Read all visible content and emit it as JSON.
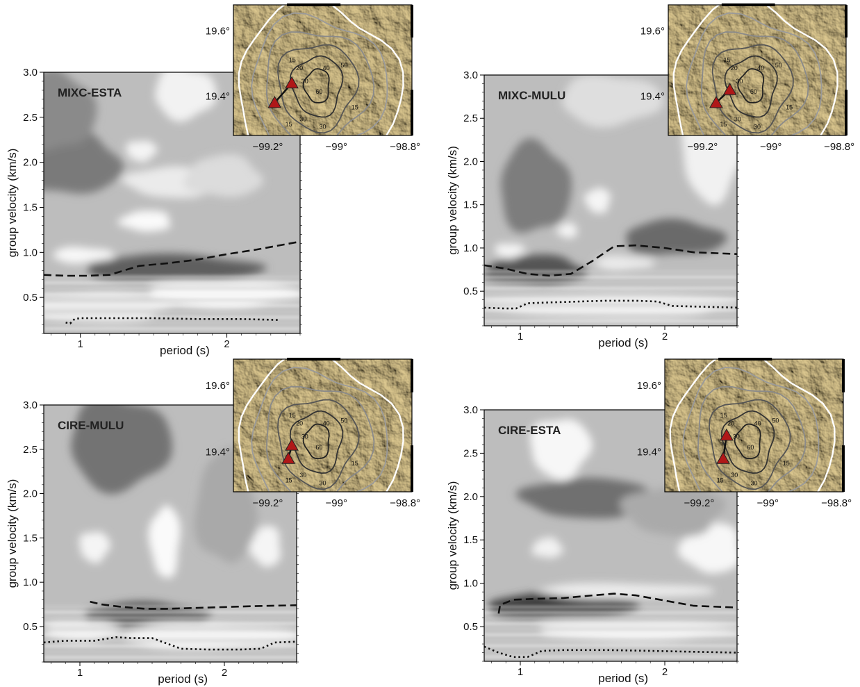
{
  "figure": {
    "map_lat_labels": [
      "19.6°",
      "19.4°"
    ],
    "map_lon_labels": [
      "−99.2°",
      "−99°",
      "−98.8°"
    ],
    "map_lat_values": [
      19.6,
      19.4
    ],
    "map_lon_values": [
      -99.2,
      -99.0,
      -98.8
    ],
    "contour_labels": [
      "15",
      "20",
      "30",
      "40",
      "50",
      "60",
      "15",
      "15",
      "30",
      "30"
    ],
    "colors": {
      "station": "#b01818",
      "dispersion_curve": "#111111",
      "map_terrain": "#c4a767",
      "contour_white": "#ffffff",
      "contour_grey": "#9a9a9a",
      "contour_dark": "#333333"
    }
  },
  "chart_data": [
    {
      "type": "heatmap",
      "title": "MIXC-ESTA",
      "xlabel": "period (s)",
      "ylabel": "group velocity (km/s)",
      "xlim": [
        0.75,
        2.5
      ],
      "ylim": [
        0.1,
        3.0
      ],
      "xticks": [
        "1",
        "2"
      ],
      "xtick_values": [
        1,
        2
      ],
      "yticks": [
        "0.5",
        "1.0",
        "1.5",
        "2.0",
        "2.5",
        "3.0"
      ],
      "ytick_values": [
        0.5,
        1.0,
        1.5,
        2.0,
        2.5,
        3.0
      ],
      "stations": [
        [
          -99.13,
          19.44
        ],
        [
          -99.18,
          19.38
        ]
      ],
      "series": [
        {
          "style": "dashed",
          "x": [
            0.75,
            0.9,
            1.05,
            1.2,
            1.4,
            1.6,
            1.8,
            2.0,
            2.2,
            2.5
          ],
          "y": [
            0.75,
            0.74,
            0.74,
            0.75,
            0.85,
            0.88,
            0.92,
            0.98,
            1.03,
            1.12
          ]
        },
        {
          "style": "dotted",
          "x": [
            0.9,
            0.93,
            0.96,
            1.0,
            1.2,
            1.5,
            1.8,
            2.1,
            2.35
          ],
          "y": [
            0.22,
            0.21,
            0.26,
            0.27,
            0.27,
            0.27,
            0.26,
            0.26,
            0.25
          ]
        }
      ]
    },
    {
      "type": "heatmap",
      "title": "MIXC-MULU",
      "xlabel": "period (s)",
      "ylabel": "group velocity (km/s)",
      "xlim": [
        0.75,
        2.5
      ],
      "ylim": [
        0.1,
        3.0
      ],
      "xticks": [
        "1",
        "2"
      ],
      "xtick_values": [
        1,
        2
      ],
      "yticks": [
        "0.5",
        "1.0",
        "1.5",
        "2.0",
        "2.5",
        "3.0"
      ],
      "ytick_values": [
        0.5,
        1.0,
        1.5,
        2.0,
        2.5,
        3.0
      ],
      "stations": [
        [
          -99.12,
          19.42
        ],
        [
          -99.16,
          19.38
        ]
      ],
      "series": [
        {
          "style": "dashed",
          "x": [
            0.75,
            0.9,
            1.05,
            1.2,
            1.35,
            1.5,
            1.65,
            1.8,
            2.0,
            2.2,
            2.5
          ],
          "y": [
            0.8,
            0.76,
            0.7,
            0.68,
            0.7,
            0.85,
            1.02,
            1.03,
            1.0,
            0.95,
            0.93
          ]
        },
        {
          "style": "dotted",
          "x": [
            0.75,
            0.9,
            0.97,
            1.05,
            1.2,
            1.4,
            1.6,
            1.8,
            1.95,
            2.05,
            2.5
          ],
          "y": [
            0.31,
            0.3,
            0.3,
            0.36,
            0.37,
            0.38,
            0.39,
            0.39,
            0.38,
            0.33,
            0.31
          ]
        }
      ]
    },
    {
      "type": "heatmap",
      "title": "CIRE-MULU",
      "xlabel": "period (s)",
      "ylabel": "group velocity (km/s)",
      "xlim": [
        0.75,
        2.5
      ],
      "ylim": [
        0.1,
        3.0
      ],
      "xticks": [
        "1",
        "2"
      ],
      "xtick_values": [
        1,
        2
      ],
      "yticks": [
        "0.5",
        "1.0",
        "1.5",
        "2.0",
        "2.5",
        "3.0"
      ],
      "ytick_values": [
        0.5,
        1.0,
        1.5,
        2.0,
        2.5,
        3.0
      ],
      "stations": [
        [
          -99.13,
          19.42
        ],
        [
          -99.14,
          19.38
        ]
      ],
      "series": [
        {
          "style": "dashed",
          "x": [
            1.07,
            1.15,
            1.3,
            1.45,
            1.6,
            1.8,
            2.0,
            2.2,
            2.5
          ],
          "y": [
            0.78,
            0.75,
            0.72,
            0.7,
            0.7,
            0.71,
            0.72,
            0.73,
            0.74
          ]
        },
        {
          "style": "dotted",
          "x": [
            0.75,
            0.9,
            1.1,
            1.25,
            1.35,
            1.5,
            1.7,
            1.9,
            2.1,
            2.25,
            2.35,
            2.5
          ],
          "y": [
            0.32,
            0.34,
            0.34,
            0.38,
            0.37,
            0.37,
            0.25,
            0.24,
            0.24,
            0.25,
            0.32,
            0.33
          ]
        }
      ]
    },
    {
      "type": "heatmap",
      "title": "CIRE-ESTA",
      "xlabel": "period (s)",
      "ylabel": "group velocity (km/s)",
      "xlim": [
        0.75,
        2.5
      ],
      "ylim": [
        0.1,
        3.0
      ],
      "xticks": [
        "1",
        "2"
      ],
      "xtick_values": [
        1,
        2
      ],
      "yticks": [
        "0.5",
        "1.0",
        "1.5",
        "2.0",
        "2.5",
        "3.0"
      ],
      "ytick_values": [
        0.5,
        1.0,
        1.5,
        2.0,
        2.5,
        3.0
      ],
      "stations": [
        [
          -99.12,
          19.45
        ],
        [
          -99.13,
          19.38
        ]
      ],
      "series": [
        {
          "style": "dashed",
          "x": [
            0.85,
            0.86,
            0.95,
            1.1,
            1.3,
            1.5,
            1.65,
            1.8,
            2.0,
            2.2,
            2.5
          ],
          "y": [
            0.65,
            0.75,
            0.81,
            0.82,
            0.83,
            0.86,
            0.88,
            0.86,
            0.8,
            0.74,
            0.72
          ]
        },
        {
          "style": "dotted",
          "x": [
            0.75,
            0.85,
            0.95,
            1.05,
            1.15,
            1.3,
            1.6,
            1.9,
            2.2,
            2.5
          ],
          "y": [
            0.27,
            0.2,
            0.15,
            0.15,
            0.22,
            0.23,
            0.23,
            0.22,
            0.21,
            0.2
          ]
        }
      ]
    }
  ]
}
